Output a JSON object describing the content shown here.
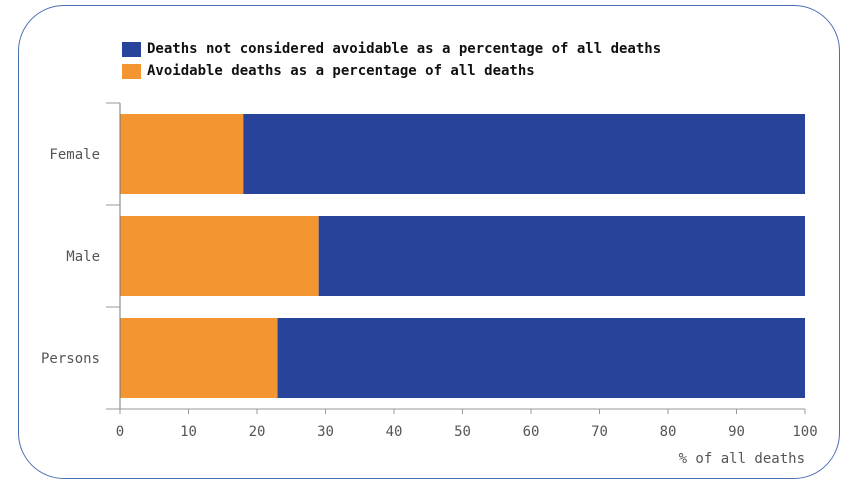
{
  "chart_data": {
    "type": "bar",
    "orientation": "horizontal",
    "stacked": true,
    "categories": [
      "Female",
      "Male",
      "Persons"
    ],
    "series": [
      {
        "name": "Avoidable deaths as a percentage of all deaths",
        "color": "#f39530",
        "values": [
          18,
          29,
          23
        ]
      },
      {
        "name": "Deaths not considered avoidable as a percentage of all deaths",
        "color": "#27449a",
        "values": [
          82,
          71,
          77
        ]
      }
    ],
    "legend_order": [
      1,
      0
    ],
    "legend_position": "top-left",
    "xlabel": "% of all deaths",
    "xlim": [
      0,
      100
    ],
    "xticks": [
      0,
      10,
      20,
      30,
      40,
      50,
      60,
      70,
      80,
      90,
      100
    ],
    "grid": false
  }
}
